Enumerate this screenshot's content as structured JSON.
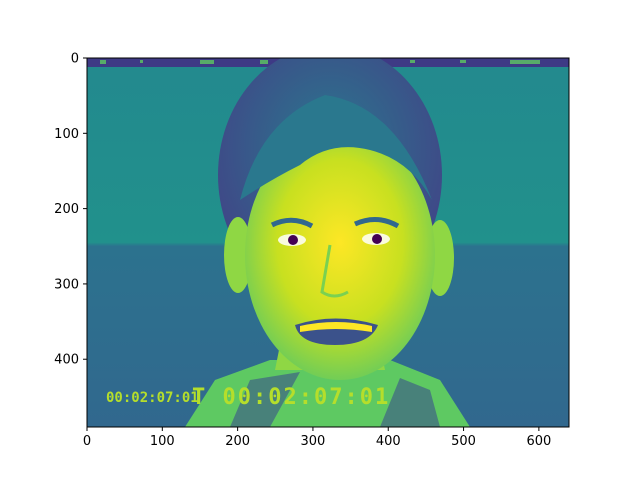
{
  "chart_data": {
    "type": "image",
    "title": "",
    "xlabel": "",
    "ylabel": "",
    "xlim": [
      0,
      640
    ],
    "ylim": [
      490,
      0
    ],
    "x_ticks": [
      0,
      100,
      200,
      300,
      400,
      500,
      600
    ],
    "y_ticks": [
      0,
      100,
      200,
      300,
      400
    ],
    "colormap": "viridis",
    "grid": false,
    "legend": "none",
    "image_content": "grayscale video frame of a person's face rendered with viewer colormap",
    "image_text": {
      "small_timecode": "00:02:07:01",
      "large_timecode": "T 00:02:07:01"
    }
  },
  "colors": {
    "background": "#ffffff",
    "viridis_dark": "#440154",
    "viridis_blue": "#3b528b",
    "viridis_teal": "#21918c",
    "viridis_green": "#5ec962",
    "viridis_yellow": "#fde725"
  }
}
